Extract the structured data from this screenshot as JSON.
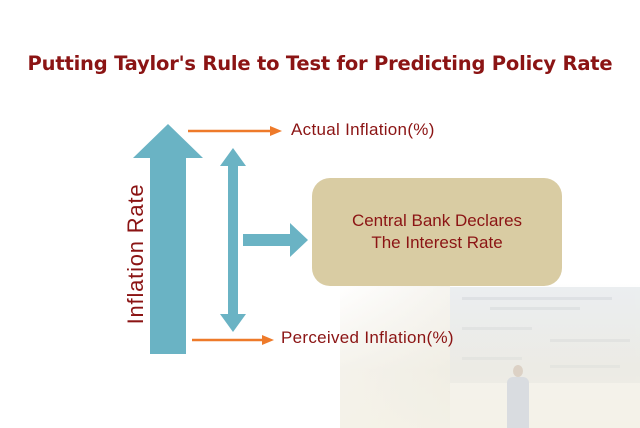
{
  "title": "Putting Taylor's Rule to Test for Predicting Policy Rate",
  "axis_label": "Inflation Rate",
  "labels": {
    "actual": "Actual Inflation(%)",
    "perceived": "Perceived Inflation(%)"
  },
  "box": {
    "line1": "Central Bank Declares",
    "line2": "The Interest Rate"
  },
  "colors": {
    "title": "#8b1414",
    "arrow_teal": "#6ab3c4",
    "pointer_orange": "#ee7a2a",
    "box_fill": "#d9cca3"
  }
}
